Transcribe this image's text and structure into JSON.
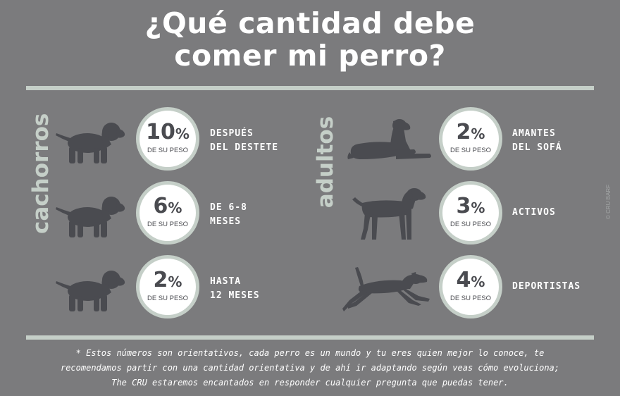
{
  "title": {
    "line1": "¿Qué cantidad debe",
    "line2": "comer mi perro?"
  },
  "sections": {
    "puppies_label": "cachorros",
    "adults_label": "adultos"
  },
  "puppies": [
    {
      "value": "10",
      "symbol": "%",
      "sub": "DE SU PESO",
      "line1": "DESPUÉS",
      "line2": "DEL DESTETE"
    },
    {
      "value": "6",
      "symbol": "%",
      "sub": "DE SU PESO",
      "line1": "DE 6-8",
      "line2": "MESES"
    },
    {
      "value": "2",
      "symbol": "%",
      "sub": "DE SU PESO",
      "line1": "HASTA",
      "line2": "12 MESES"
    }
  ],
  "adults": [
    {
      "value": "2",
      "symbol": "%",
      "sub": "DE SU PESO",
      "line1": "AMANTES",
      "line2": "DEL SOFÁ"
    },
    {
      "value": "3",
      "symbol": "%",
      "sub": "DE SU PESO",
      "line1": "ACTIVOS",
      "line2": ""
    },
    {
      "value": "4",
      "symbol": "%",
      "sub": "DE SU PESO",
      "line1": "DEPORTISTAS",
      "line2": ""
    }
  ],
  "copyright": "© CRU BARF",
  "footnote": {
    "line1": "* Estos números son orientativos, cada perro es un mundo y tu eres quien mejor lo conoce, te",
    "line2": "recomendamos partir con una cantidad orientativa y de ahí ir adaptando según veas cómo evoluciona;",
    "line3": "The CRU estaremos encantados en responder cualquier pregunta que puedas tener."
  },
  "colors": {
    "background": "#7b7b7d",
    "accent": "#c5cfc8",
    "dog": "#4a4b50",
    "circle": "#ffffff"
  },
  "icons": [
    "puppy-standing-icon",
    "dog-lying-icon",
    "dog-standing-icon",
    "dog-running-icon"
  ]
}
